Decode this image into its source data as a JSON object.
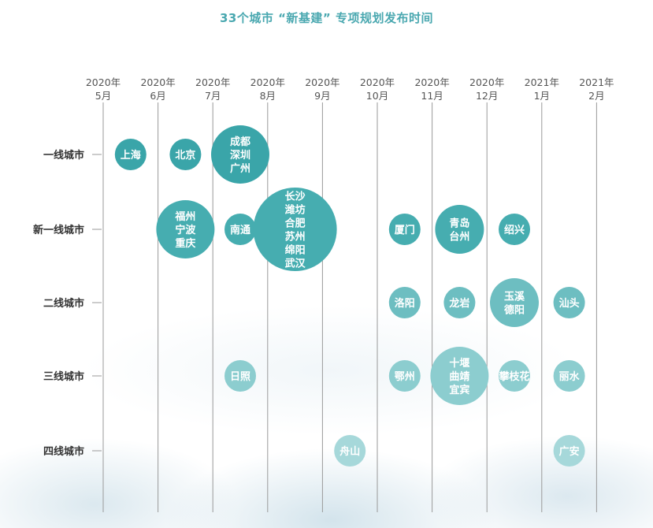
{
  "title": "33个城市 “新基建” 专项规划发布时间",
  "chart_data": {
    "type": "scatter",
    "title": "33个城市 “新基建” 专项规划发布时间",
    "x_categories": [
      [
        "2020年",
        "5月"
      ],
      [
        "2020年",
        "6月"
      ],
      [
        "2020年",
        "7月"
      ],
      [
        "2020年",
        "8月"
      ],
      [
        "2020年",
        "9月"
      ],
      [
        "2020年",
        "10月"
      ],
      [
        "2020年",
        "11月"
      ],
      [
        "2020年",
        "12月"
      ],
      [
        "2021年",
        "1月"
      ],
      [
        "2021年",
        "2月"
      ]
    ],
    "y_categories": [
      "一线城市",
      "新一线城市",
      "二线城市",
      "三线城市",
      "四线城市"
    ],
    "points": [
      {
        "x": 0.5,
        "y": 0,
        "cities": [
          "上海"
        ]
      },
      {
        "x": 1.5,
        "y": 0,
        "cities": [
          "北京"
        ]
      },
      {
        "x": 2.5,
        "y": 0,
        "cities": [
          "成都",
          "深圳",
          "广州"
        ]
      },
      {
        "x": 1.5,
        "y": 1,
        "cities": [
          "福州",
          "宁波",
          "重庆"
        ]
      },
      {
        "x": 2.5,
        "y": 1,
        "cities": [
          "南通"
        ]
      },
      {
        "x": 3.5,
        "y": 1,
        "cities": [
          "长沙",
          "潍坊",
          "合肥",
          "苏州",
          "绵阳",
          "武汉"
        ]
      },
      {
        "x": 5.5,
        "y": 1,
        "cities": [
          "厦门"
        ]
      },
      {
        "x": 6.5,
        "y": 1,
        "cities": [
          "青岛",
          "台州"
        ]
      },
      {
        "x": 7.5,
        "y": 1,
        "cities": [
          "绍兴"
        ]
      },
      {
        "x": 5.5,
        "y": 2,
        "cities": [
          "洛阳"
        ]
      },
      {
        "x": 6.5,
        "y": 2,
        "cities": [
          "龙岩"
        ]
      },
      {
        "x": 7.5,
        "y": 2,
        "cities": [
          "玉溪",
          "德阳"
        ]
      },
      {
        "x": 8.5,
        "y": 2,
        "cities": [
          "汕头"
        ]
      },
      {
        "x": 2.5,
        "y": 3,
        "cities": [
          "日照"
        ]
      },
      {
        "x": 5.5,
        "y": 3,
        "cities": [
          "鄂州"
        ]
      },
      {
        "x": 6.5,
        "y": 3,
        "cities": [
          "十堰",
          "曲靖",
          "宜宾"
        ]
      },
      {
        "x": 7.5,
        "y": 3,
        "cities": [
          "攀枝花"
        ]
      },
      {
        "x": 8.5,
        "y": 3,
        "cities": [
          "丽水"
        ]
      },
      {
        "x": 4.5,
        "y": 4,
        "cities": [
          "舟山"
        ]
      },
      {
        "x": 8.5,
        "y": 4,
        "cities": [
          "广安"
        ]
      }
    ],
    "colors": {
      "一线城市": "#3aa5a9",
      "新一线城市": "#46adb0",
      "二线城市": "#6dbec1",
      "三线城市": "#8ccdcf",
      "四线城市": "#a6d8da"
    },
    "grid_color": "#9a9a9a"
  }
}
